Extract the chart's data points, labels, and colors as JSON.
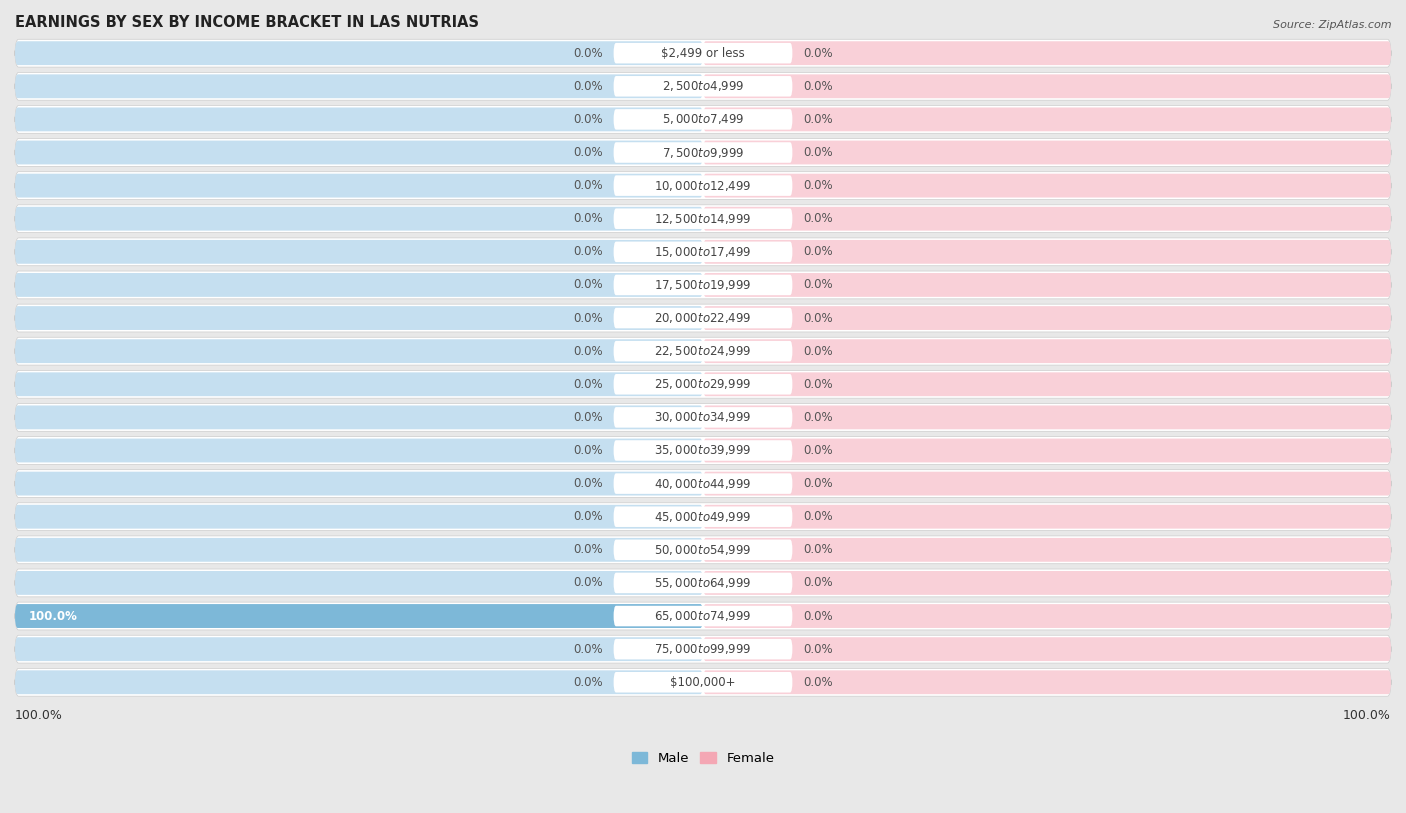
{
  "title": "EARNINGS BY SEX BY INCOME BRACKET IN LAS NUTRIAS",
  "source": "Source: ZipAtlas.com",
  "categories": [
    "$2,499 or less",
    "$2,500 to $4,999",
    "$5,000 to $7,499",
    "$7,500 to $9,999",
    "$10,000 to $12,499",
    "$12,500 to $14,999",
    "$15,000 to $17,499",
    "$17,500 to $19,999",
    "$20,000 to $22,499",
    "$22,500 to $24,999",
    "$25,000 to $29,999",
    "$30,000 to $34,999",
    "$35,000 to $39,999",
    "$40,000 to $44,999",
    "$45,000 to $49,999",
    "$50,000 to $54,999",
    "$55,000 to $64,999",
    "$65,000 to $74,999",
    "$75,000 to $99,999",
    "$100,000+"
  ],
  "male_values": [
    0.0,
    0.0,
    0.0,
    0.0,
    0.0,
    0.0,
    0.0,
    0.0,
    0.0,
    0.0,
    0.0,
    0.0,
    0.0,
    0.0,
    0.0,
    0.0,
    0.0,
    100.0,
    0.0,
    0.0
  ],
  "female_values": [
    0.0,
    0.0,
    0.0,
    0.0,
    0.0,
    0.0,
    0.0,
    0.0,
    0.0,
    0.0,
    0.0,
    0.0,
    0.0,
    0.0,
    0.0,
    0.0,
    0.0,
    0.0,
    0.0,
    0.0
  ],
  "male_color": "#7db8d8",
  "female_color": "#f4a7b4",
  "male_label": "Male",
  "female_label": "Female",
  "background_color": "#e8e8e8",
  "row_bg_color": "#ffffff",
  "row_bg_color2": "#f2f2f2",
  "bar_bg_blue": "#c5dff0",
  "bar_bg_pink": "#f9d0d8",
  "xlim": 100,
  "title_fontsize": 10.5,
  "value_fontsize": 8.5,
  "cat_fontsize": 8.5,
  "legend_fontsize": 9.5,
  "x_axis_label_left": "100.0%",
  "x_axis_label_right": "100.0%"
}
